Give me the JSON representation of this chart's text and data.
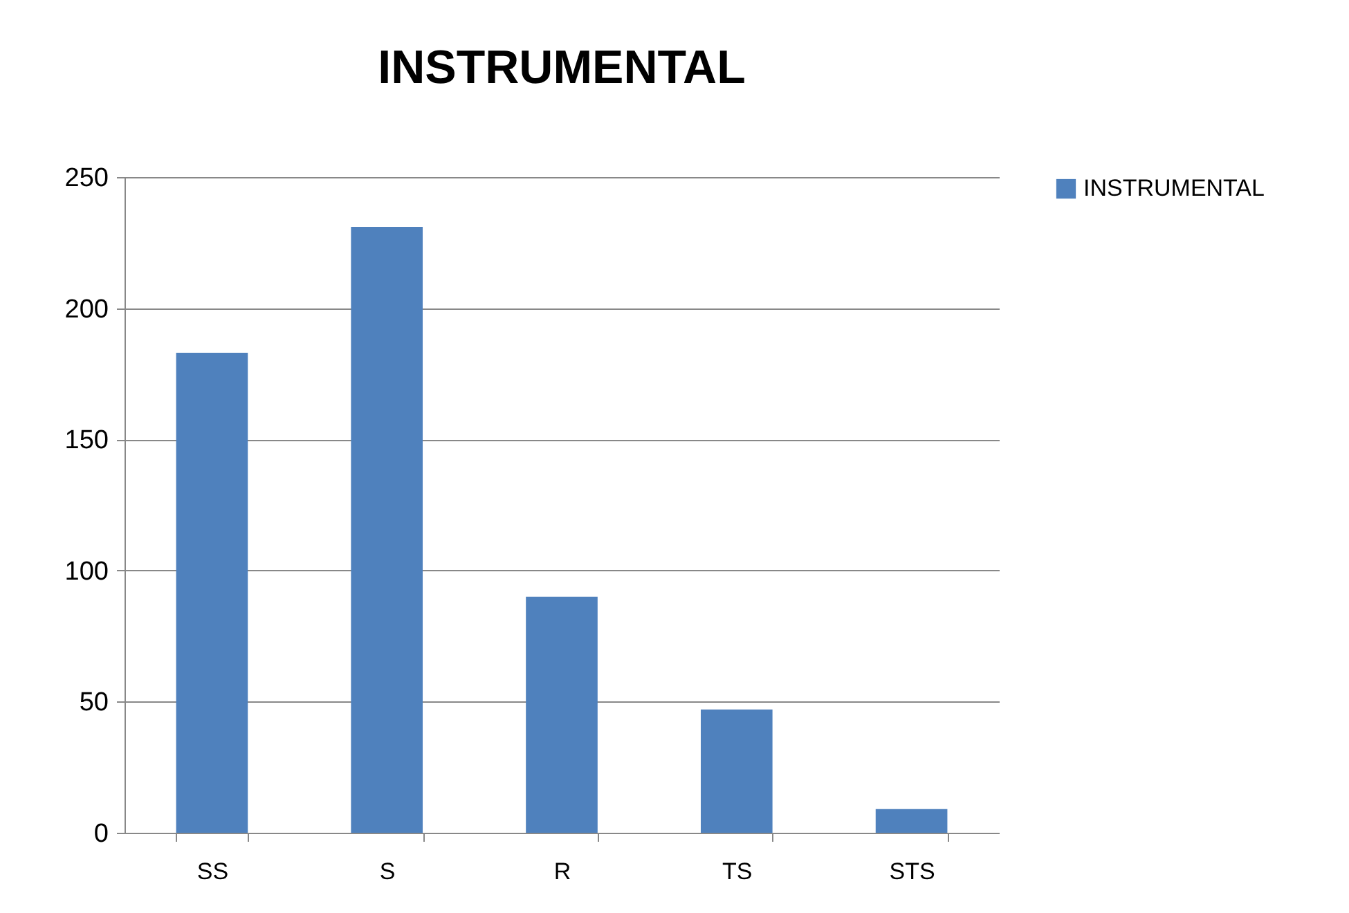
{
  "chart_data": {
    "type": "bar",
    "title": "INSTRUMENTAL",
    "categories": [
      "SS",
      "S",
      "R",
      "TS",
      "STS"
    ],
    "series": [
      {
        "name": "INSTRUMENTAL",
        "color": "#4f81bd",
        "values": [
          183,
          231,
          90,
          47,
          9
        ]
      }
    ],
    "ylim": [
      0,
      250
    ],
    "yticks": [
      0,
      50,
      100,
      150,
      200,
      250
    ],
    "grid": "y",
    "legend": "right"
  }
}
